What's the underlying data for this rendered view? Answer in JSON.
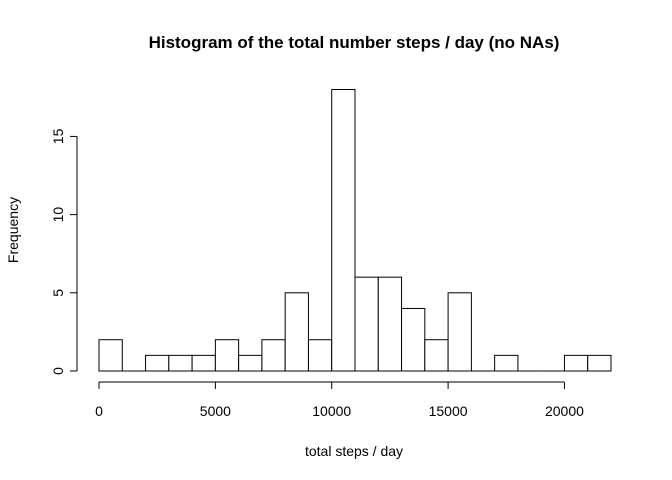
{
  "chart_data": {
    "type": "bar",
    "title": "Histogram of the total number steps / day (no NAs)",
    "xlabel": "total steps / day",
    "ylabel": "Frequency",
    "bin_width": 1000,
    "bin_starts": [
      0,
      1000,
      2000,
      3000,
      4000,
      5000,
      6000,
      7000,
      8000,
      9000,
      10000,
      11000,
      12000,
      13000,
      14000,
      15000,
      16000,
      17000,
      18000,
      19000,
      20000,
      21000
    ],
    "values": [
      2,
      0,
      1,
      1,
      1,
      2,
      1,
      2,
      5,
      2,
      18,
      6,
      6,
      4,
      2,
      5,
      0,
      1,
      0,
      0,
      1,
      1
    ],
    "xlim": [
      0,
      22000
    ],
    "ylim": [
      0,
      18
    ],
    "xticks": [
      0,
      5000,
      10000,
      15000,
      20000
    ],
    "xtick_labels": [
      "0",
      "5000",
      "10000",
      "15000",
      "20000"
    ],
    "yticks": [
      0,
      5,
      10,
      15
    ],
    "ytick_labels": [
      "0",
      "5",
      "10",
      "15"
    ],
    "grid": false,
    "bar_fill": "#ffffff",
    "bar_stroke": "#000000"
  }
}
